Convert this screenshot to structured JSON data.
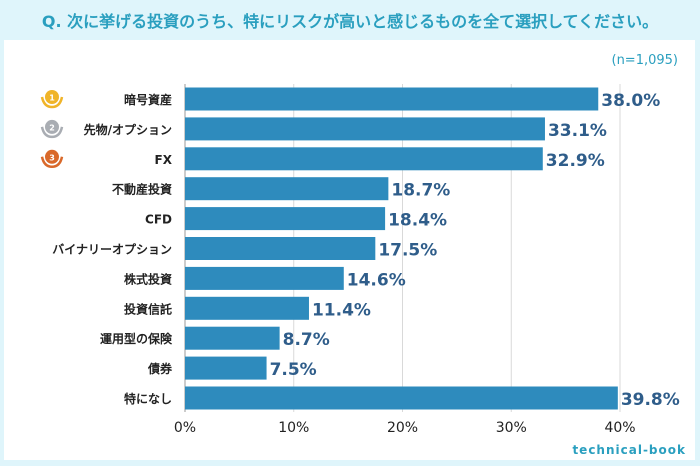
{
  "title": "Q. 次に挙げる投資のうち、特にリスクが高いと感じるものを全て選択してください。",
  "sample": "(n=1,095)",
  "brand": "technical-book",
  "colors": {
    "bar": "#2e8bbd",
    "value": "#2f5d8a",
    "gold": "#f0b429",
    "silver": "#a9adb3",
    "bronze": "#d9692a"
  },
  "chart_data": {
    "type": "bar",
    "orientation": "horizontal",
    "title": "Q. 次に挙げる投資のうち、特にリスクが高いと感じるものを全て選択してください。",
    "categories": [
      "暗号資産",
      "先物/オプション",
      "FX",
      "不動産投資",
      "CFD",
      "バイナリーオプション",
      "株式投資",
      "投資信託",
      "運用型の保険",
      "債券",
      "特になし"
    ],
    "values": [
      38.0,
      33.1,
      32.9,
      18.7,
      18.4,
      17.5,
      14.6,
      11.4,
      8.7,
      7.5,
      39.8
    ],
    "value_labels": [
      "38.0%",
      "33.1%",
      "32.9%",
      "18.7%",
      "18.4%",
      "17.5%",
      "14.6%",
      "11.4%",
      "8.7%",
      "7.5%",
      "39.8%"
    ],
    "ranks": [
      "1",
      "2",
      "3"
    ],
    "xlim": [
      0,
      40
    ],
    "xticks": [
      "0%",
      "10%",
      "20%",
      "30%",
      "40%"
    ],
    "grid": true
  }
}
